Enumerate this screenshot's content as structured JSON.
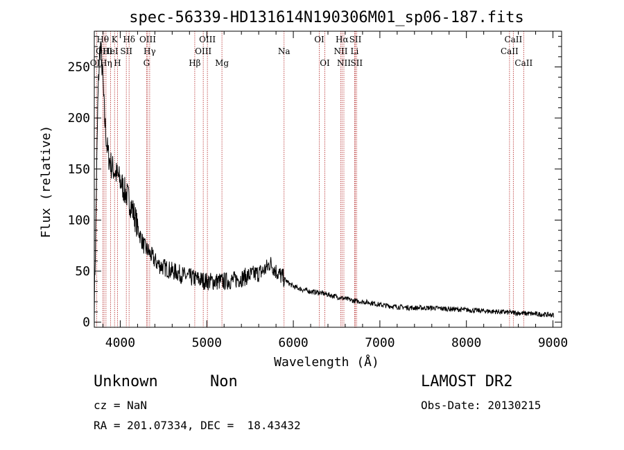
{
  "chart_data": {
    "type": "line",
    "title": "spec-56339-HD131614N190306M01_sp06-187.fits",
    "xlabel": "Wavelength (Å)",
    "ylabel": "Flux (relative)",
    "xlim": [
      3700,
      9100
    ],
    "ylim": [
      -5,
      285
    ],
    "x_ticks": [
      4000,
      5000,
      6000,
      7000,
      8000,
      9000
    ],
    "y_ticks": [
      0,
      50,
      100,
      150,
      200,
      250
    ],
    "grid": false,
    "series": [
      {
        "points": [
          [
            3700,
            20
          ],
          [
            3710,
            60
          ],
          [
            3720,
            110
          ],
          [
            3730,
            160
          ],
          [
            3740,
            210
          ],
          [
            3750,
            240
          ],
          [
            3760,
            260
          ],
          [
            3770,
            272
          ],
          [
            3780,
            262
          ],
          [
            3790,
            250
          ],
          [
            3800,
            235
          ],
          [
            3810,
            215
          ],
          [
            3820,
            200
          ],
          [
            3830,
            188
          ],
          [
            3840,
            178
          ],
          [
            3850,
            170
          ],
          [
            3860,
            164
          ],
          [
            3880,
            158
          ],
          [
            3900,
            152
          ],
          [
            3920,
            150
          ],
          [
            3940,
            147
          ],
          [
            3960,
            144
          ],
          [
            3980,
            142
          ],
          [
            4000,
            138
          ],
          [
            4020,
            135
          ],
          [
            4040,
            130
          ],
          [
            4060,
            127
          ],
          [
            4080,
            124
          ],
          [
            4100,
            120
          ],
          [
            4120,
            116
          ],
          [
            4150,
            108
          ],
          [
            4180,
            100
          ],
          [
            4200,
            93
          ],
          [
            4230,
            85
          ],
          [
            4260,
            78
          ],
          [
            4290,
            72
          ],
          [
            4320,
            70
          ],
          [
            4350,
            66
          ],
          [
            4380,
            63
          ],
          [
            4400,
            60
          ],
          [
            4450,
            56
          ],
          [
            4500,
            54
          ],
          [
            4550,
            52
          ],
          [
            4600,
            50
          ],
          [
            4650,
            49
          ],
          [
            4700,
            47
          ],
          [
            4750,
            45
          ],
          [
            4800,
            44
          ],
          [
            4850,
            43
          ],
          [
            4900,
            42
          ],
          [
            4950,
            41
          ],
          [
            5000,
            40
          ],
          [
            5100,
            40
          ],
          [
            5200,
            40
          ],
          [
            5300,
            41
          ],
          [
            5400,
            43
          ],
          [
            5500,
            46
          ],
          [
            5600,
            48
          ],
          [
            5650,
            50
          ],
          [
            5700,
            54
          ],
          [
            5730,
            58
          ],
          [
            5760,
            55
          ],
          [
            5800,
            50
          ],
          [
            5850,
            46
          ],
          [
            5900,
            42
          ],
          [
            5950,
            38
          ],
          [
            6000,
            35
          ],
          [
            6100,
            32
          ],
          [
            6200,
            30
          ],
          [
            6300,
            29
          ],
          [
            6400,
            27
          ],
          [
            6500,
            25
          ],
          [
            6600,
            23
          ],
          [
            6700,
            21
          ],
          [
            6800,
            20
          ],
          [
            6900,
            19
          ],
          [
            7000,
            17
          ],
          [
            7200,
            15
          ],
          [
            7400,
            14
          ],
          [
            7600,
            14
          ],
          [
            7800,
            13
          ],
          [
            8000,
            12
          ],
          [
            8200,
            11
          ],
          [
            8400,
            10
          ],
          [
            8600,
            9
          ],
          [
            8800,
            8
          ],
          [
            9000,
            7
          ],
          [
            9010,
            7
          ]
        ]
      }
    ],
    "spectral_lines": [
      {
        "label": "OII",
        "wavelength": 3727,
        "row": 2
      },
      {
        "label": "Hθ",
        "wavelength": 3798,
        "row": 0
      },
      {
        "label": "OIII",
        "wavelength": 3813,
        "row": 1
      },
      {
        "label": "Hη",
        "wavelength": 3835,
        "row": 2
      },
      {
        "label": "HeI",
        "wavelength": 3888,
        "row": 1
      },
      {
        "label": "K",
        "wavelength": 3934,
        "row": 0
      },
      {
        "label": "H",
        "wavelength": 3968,
        "row": 2
      },
      {
        "label": "SII",
        "wavelength": 4070,
        "row": 1
      },
      {
        "label": "Hδ",
        "wavelength": 4102,
        "row": 0
      },
      {
        "label": "OIII",
        "wavelength": 4317,
        "row": 0
      },
      {
        "label": "Hγ",
        "wavelength": 4340,
        "row": 1
      },
      {
        "label": "G",
        "wavelength": 4304,
        "row": 2
      },
      {
        "label": "Hβ",
        "wavelength": 4861,
        "row": 2
      },
      {
        "label": "OIII",
        "wavelength": 4959,
        "row": 1
      },
      {
        "label": "OIII",
        "wavelength": 5007,
        "row": 0
      },
      {
        "label": "Mg",
        "wavelength": 5175,
        "row": 2
      },
      {
        "label": "Na",
        "wavelength": 5893,
        "row": 1
      },
      {
        "label": "OI",
        "wavelength": 6300,
        "row": 0
      },
      {
        "label": "OI",
        "wavelength": 6364,
        "row": 2
      },
      {
        "label": "NII",
        "wavelength": 6548,
        "row": 1
      },
      {
        "label": "Hα",
        "wavelength": 6563,
        "row": 0
      },
      {
        "label": "NII",
        "wavelength": 6584,
        "row": 2
      },
      {
        "label": "SII",
        "wavelength": 6717,
        "row": 0
      },
      {
        "label": "Li",
        "wavelength": 6708,
        "row": 1
      },
      {
        "label": "SII",
        "wavelength": 6731,
        "row": 2
      },
      {
        "label": "CaII",
        "wavelength": 8498,
        "row": 1
      },
      {
        "label": "CaII",
        "wavelength": 8542,
        "row": 0
      },
      {
        "label": "CaII",
        "wavelength": 8662,
        "row": 2
      }
    ],
    "line_color": "#b22222",
    "series_color": "#000000"
  },
  "info": {
    "class": "Unknown",
    "subclass": "Non",
    "survey": "LAMOST DR2",
    "cz": "cz = NaN",
    "obs_date": "Obs-Date: 20130215",
    "radec": "RA = 201.07334, DEC =  18.43432"
  }
}
